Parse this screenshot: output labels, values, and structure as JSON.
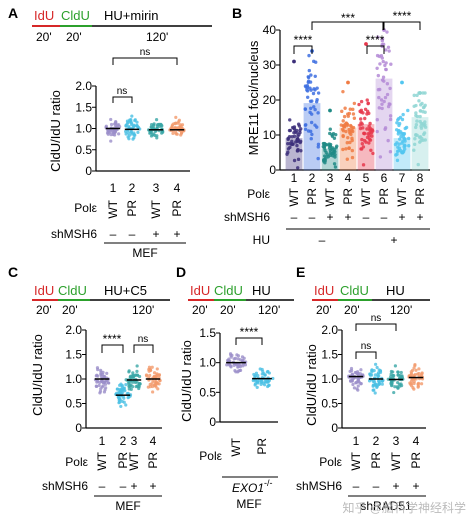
{
  "colors": {
    "idu": "#d62728",
    "cldu": "#2ca02c",
    "wt": "#9b8fc9",
    "pr": "#48bfe3",
    "shmsh6_wt": "#3aa6a6",
    "shmsh6_pr": "#f39a6b",
    "mre_wt_nohu": "#3c2f7a",
    "mre_pr_nohu": "#3d6fe0",
    "mre_wt_sh_nohu": "#1f8a85",
    "mre_pr_sh_nohu": "#f07b43",
    "mre_wt_hu": "#e6374b",
    "mre_pr_hu": "#b48bd6",
    "mre_wt_sh_hu": "#52c6f0",
    "mre_pr_sh_hu": "#8fd6d3"
  },
  "panel_letters": {
    "A": "A",
    "B": "B",
    "C": "C",
    "D": "D",
    "E": "E"
  },
  "schemes": {
    "A": {
      "idu": "IdU",
      "cldu": "CldU",
      "treatment": "HU+mirin",
      "t1": "20'",
      "t2": "20'",
      "t3": "120'"
    },
    "C": {
      "idu": "IdU",
      "cldu": "CldU",
      "treatment": "HU+C5",
      "t1": "20'",
      "t2": "20'",
      "t3": "120'"
    },
    "D": {
      "idu": "IdU",
      "cldu": "CldU",
      "treatment": "HU",
      "t1": "20'",
      "t2": "20'",
      "t3": "120'"
    },
    "E": {
      "idu": "IdU",
      "cldu": "CldU",
      "treatment": "HU",
      "t1": "20'",
      "t2": "20'",
      "t3": "120'"
    }
  },
  "sig": {
    "A_top": "ns",
    "A_mid": "ns",
    "B_left": "****",
    "B_mid": "***",
    "B_right1": "****",
    "B_right2": "****",
    "C_left": "****",
    "C_right": "ns",
    "D": "****",
    "E_top": "ns",
    "E_mid": "ns"
  },
  "rowlabels": {
    "pol": "Polε",
    "shmsh6": "shMSH6",
    "hu": "HU",
    "mef": "MEF",
    "exo": "EXO1",
    "exo_sup": "-/-",
    "shrad": "shRAD51"
  },
  "grp4": {
    "nums": [
      "1",
      "2",
      "3",
      "4"
    ],
    "pol": [
      "WT",
      "PR",
      "WT",
      "PR"
    ],
    "sh": [
      "–",
      "–",
      "+",
      "+"
    ]
  },
  "grpB": {
    "nums": [
      "1",
      "2",
      "3",
      "4",
      "5",
      "6",
      "7",
      "8"
    ],
    "pol": [
      "WT",
      "PR",
      "WT",
      "PR",
      "WT",
      "PR",
      "WT",
      "PR"
    ],
    "sh": [
      "–",
      "–",
      "+",
      "+",
      "–",
      "–",
      "+",
      "+"
    ],
    "hu_minus": "–",
    "hu_plus": "+"
  },
  "grpD": {
    "pol": [
      "WT",
      "PR"
    ]
  },
  "watermark": "知乎 @脑科学神经科学",
  "chart_data": [
    {
      "panel": "A",
      "type": "scatter",
      "ylabel": "CldU/IdU ratio",
      "ylim": [
        0,
        2.0
      ],
      "yticks": [
        "0",
        "0.5",
        "1.0",
        "1.5",
        "2.0"
      ],
      "categories": [
        "WT",
        "PR",
        "WT shMSH6",
        "PR shMSH6"
      ],
      "medians": [
        1.0,
        0.98,
        0.97,
        0.97
      ],
      "spread": [
        0.18,
        0.2,
        0.16,
        0.18
      ]
    },
    {
      "panel": "B",
      "type": "bar",
      "ylabel": "MRE11 foci/nucleus",
      "ylim": [
        0,
        40
      ],
      "yticks": [
        "0",
        "10",
        "20",
        "30",
        "40"
      ],
      "categories": [
        "WT",
        "PR",
        "WT shMSH6",
        "PR shMSH6",
        "WT HU",
        "PR HU",
        "WT shMSH6 HU",
        "PR shMSH6 HU"
      ],
      "values": [
        9,
        19,
        6,
        12,
        13,
        26,
        9,
        15
      ],
      "max": [
        31,
        34,
        17,
        25,
        36,
        40,
        25,
        22
      ]
    },
    {
      "panel": "C",
      "type": "scatter",
      "ylabel": "CldU/IdU ratio",
      "ylim": [
        0,
        2.0
      ],
      "yticks": [
        "0",
        "0.5",
        "1.0",
        "1.5",
        "2.0"
      ],
      "categories": [
        "WT",
        "PR",
        "WT shMSH6",
        "PR shMSH6"
      ],
      "medians": [
        1.0,
        0.67,
        0.98,
        1.0
      ],
      "spread": [
        0.22,
        0.18,
        0.2,
        0.2
      ]
    },
    {
      "panel": "D",
      "type": "scatter",
      "ylabel": "CldU/IdU ratio",
      "ylim": [
        0,
        1.5
      ],
      "yticks": [
        "0",
        "0.5",
        "1.0",
        "1.5"
      ],
      "categories": [
        "WT",
        "PR"
      ],
      "medians": [
        1.0,
        0.73
      ],
      "spread": [
        0.12,
        0.13
      ]
    },
    {
      "panel": "E",
      "type": "scatter",
      "ylabel": "CldU/IdU ratio",
      "ylim": [
        0,
        2.0
      ],
      "yticks": [
        "0",
        "0.5",
        "1.0",
        "1.5",
        "2.0"
      ],
      "categories": [
        "WT",
        "PR",
        "WT shMSH6",
        "PR shMSH6"
      ],
      "medians": [
        1.05,
        1.0,
        0.99,
        1.03
      ],
      "spread": [
        0.2,
        0.2,
        0.19,
        0.2
      ]
    }
  ]
}
